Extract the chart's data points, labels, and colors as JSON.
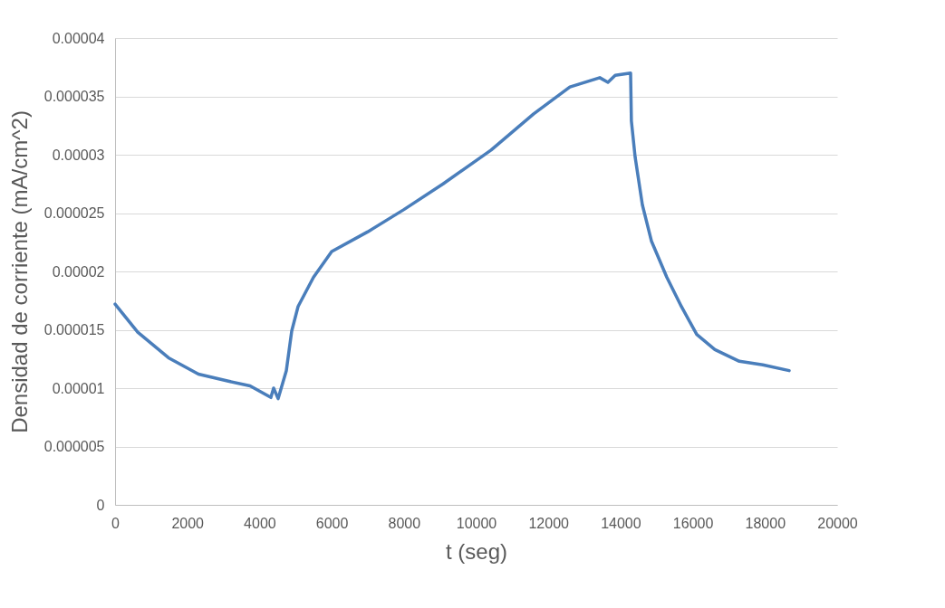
{
  "chart_data": {
    "type": "line",
    "xlabel": "t (seg)",
    "ylabel": "Densidad de corriente (mA/cm^2)",
    "x": [
      0,
      627,
      1480,
      2309,
      3137,
      3739,
      4316,
      4391,
      4517,
      4743,
      4893,
      5069,
      5495,
      6000,
      7000,
      8000,
      9084,
      10414,
      11593,
      12597,
      13425,
      13651,
      13852,
      14278,
      14300,
      14404,
      14605,
      14856,
      15282,
      15684,
      16110,
      16612,
      17290,
      17942,
      18670
    ],
    "series": [
      {
        "color": "#4a7ebb",
        "values": [
          1.72e-05,
          1.48e-05,
          1.26e-05,
          1.12e-05,
          1.06e-05,
          1.02e-05,
          9.2e-06,
          1e-05,
          9.1e-06,
          1.15e-05,
          1.49e-05,
          1.7e-05,
          1.95e-05,
          2.17e-05,
          2.34e-05,
          2.53e-05,
          2.75e-05,
          3.04e-05,
          3.35e-05,
          3.58e-05,
          3.66e-05,
          3.62e-05,
          3.68e-05,
          3.7e-05,
          3.29e-05,
          2.98e-05,
          2.57e-05,
          2.26e-05,
          1.95e-05,
          1.7e-05,
          1.46e-05,
          1.33e-05,
          1.23e-05,
          1.2e-05,
          1.15e-05
        ]
      }
    ],
    "xlim": [
      0,
      20000
    ],
    "xticks": [
      0,
      2000,
      4000,
      6000,
      8000,
      10000,
      12000,
      14000,
      16000,
      18000,
      20000
    ],
    "ylim": [
      0,
      4e-05
    ],
    "yticks": [
      0,
      {
        "value": 5e-06,
        "label": "0.000005"
      },
      {
        "value": 1e-05,
        "label": "0.00001"
      },
      {
        "value": 1.5e-05,
        "label": "0.000015"
      },
      {
        "value": 2e-05,
        "label": "0.00002"
      },
      {
        "value": 2.5e-05,
        "label": "0.000025"
      },
      {
        "value": 3e-05,
        "label": "0.00003"
      },
      {
        "value": 3.5e-05,
        "label": "0.000035"
      },
      {
        "value": 4e-05,
        "label": "0.00004"
      }
    ],
    "grid": "y",
    "marker": "none",
    "line_style": "solid"
  }
}
